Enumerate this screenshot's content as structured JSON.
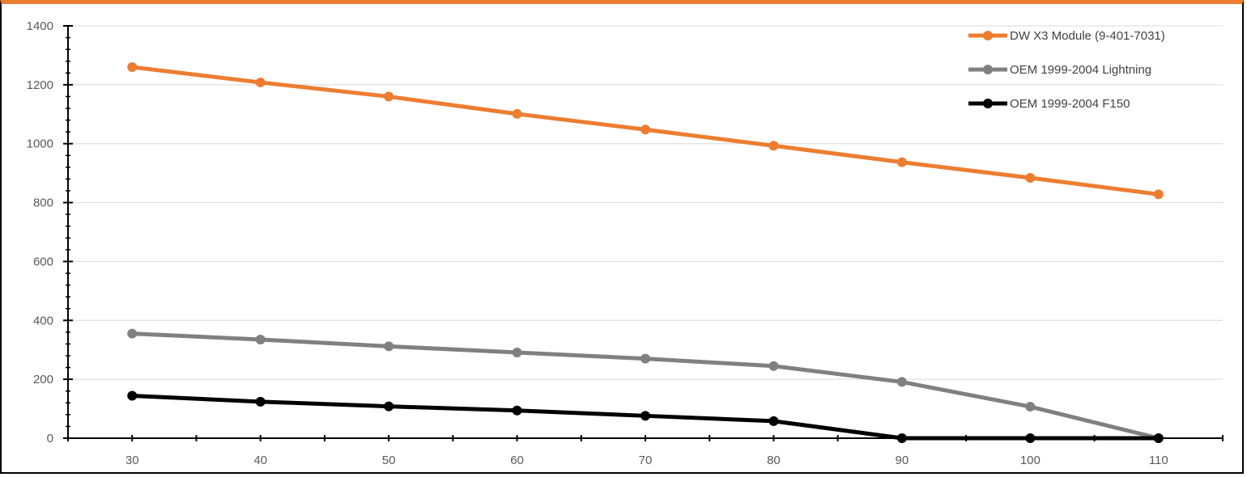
{
  "chart_data": {
    "type": "line",
    "x": [
      30,
      40,
      50,
      60,
      70,
      80,
      90,
      100,
      110
    ],
    "series": [
      {
        "name": "DW X3 Module (9-401-7031)",
        "color": "#ED7D31",
        "values": [
          1260,
          1208,
          1160,
          1101,
          1048,
          993,
          937,
          884,
          828
        ]
      },
      {
        "name": "OEM 1999-2004 Lightning",
        "color": "#808080",
        "values": [
          355,
          335,
          312,
          291,
          270,
          245,
          191,
          107,
          0
        ]
      },
      {
        "name": "OEM 1999-2004 F150",
        "color": "#000000",
        "values": [
          144,
          124,
          108,
          94,
          76,
          58,
          0,
          0,
          0
        ]
      }
    ],
    "xlim": [
      25,
      115
    ],
    "ylim": [
      0,
      1400
    ],
    "y_ticks": [
      0,
      200,
      400,
      600,
      800,
      1000,
      1200,
      1400
    ],
    "x_ticks": [
      30,
      40,
      50,
      60,
      70,
      80,
      90,
      100,
      110
    ],
    "grid": "horizontal",
    "legend": "top-right",
    "title": "",
    "xlabel": "",
    "ylabel": ""
  }
}
